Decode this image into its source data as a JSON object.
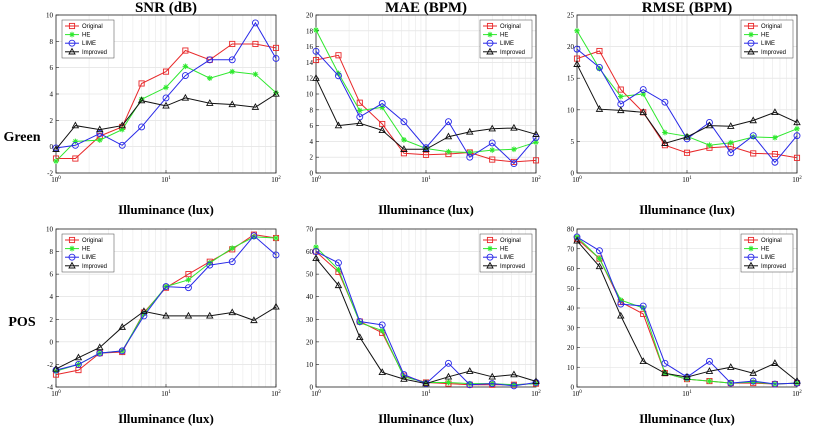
{
  "row_labels": [
    "Green",
    "POS"
  ],
  "chart_data": [
    {
      "type": "line",
      "row": 0,
      "col": 0,
      "title": "SNR (dB)",
      "xlabel": "Illuminance (lux)",
      "ylabel": "",
      "xscale": "log",
      "xlim": [
        1,
        100
      ],
      "ylim": [
        -2,
        10
      ],
      "yticks": [
        -2,
        0,
        2,
        4,
        6,
        8,
        10
      ],
      "grid": true,
      "legend": "top-left",
      "x": [
        1,
        1.5,
        2.5,
        4,
        6,
        10,
        15,
        25,
        40,
        65,
        100
      ],
      "series": [
        {
          "name": "Original",
          "color": "#e8282a",
          "marker": "square",
          "values": [
            -0.9,
            -0.9,
            0.8,
            1.5,
            4.8,
            5.7,
            7.3,
            6.6,
            7.8,
            7.8,
            7.5
          ]
        },
        {
          "name": "HE",
          "color": "#2ee82e",
          "marker": "star",
          "values": [
            -1.1,
            0.4,
            0.5,
            1.3,
            3.6,
            4.5,
            6.1,
            5.2,
            5.7,
            5.5,
            4.1
          ]
        },
        {
          "name": "LIME",
          "color": "#2828e8",
          "marker": "circle",
          "values": [
            -0.1,
            0.1,
            1.0,
            0.1,
            1.5,
            3.7,
            5.4,
            6.6,
            6.6,
            9.4,
            6.7
          ]
        },
        {
          "name": "Improved",
          "color": "#111111",
          "marker": "triangle",
          "values": [
            -0.2,
            1.6,
            1.3,
            1.6,
            3.5,
            3.1,
            3.7,
            3.3,
            3.2,
            3.0,
            4.0
          ]
        }
      ]
    },
    {
      "type": "line",
      "row": 0,
      "col": 1,
      "title": "MAE (BPM)",
      "xlabel": "Illuminance (lux)",
      "ylabel": "",
      "xscale": "log",
      "xlim": [
        1,
        100
      ],
      "ylim": [
        0,
        20
      ],
      "yticks": [
        0,
        2,
        4,
        6,
        8,
        10,
        12,
        14,
        16,
        18,
        20
      ],
      "grid": true,
      "legend": "top-right",
      "x": [
        1,
        1.6,
        2.5,
        4,
        6.3,
        10,
        16,
        25,
        40,
        63,
        100
      ],
      "series": [
        {
          "name": "Original",
          "color": "#e8282a",
          "marker": "square",
          "values": [
            14.3,
            14.9,
            8.9,
            6.2,
            2.5,
            2.3,
            2.4,
            2.6,
            1.7,
            1.4,
            1.6
          ]
        },
        {
          "name": "HE",
          "color": "#2ee82e",
          "marker": "star",
          "values": [
            18.1,
            12.6,
            7.9,
            8.3,
            4.2,
            3.1,
            2.7,
            2.6,
            2.9,
            3.0,
            3.9
          ]
        },
        {
          "name": "LIME",
          "color": "#2828e8",
          "marker": "circle",
          "values": [
            15.4,
            12.3,
            7.1,
            8.8,
            6.5,
            3.2,
            6.5,
            2.0,
            3.8,
            1.2,
            4.5
          ]
        },
        {
          "name": "Improved",
          "color": "#111111",
          "marker": "triangle",
          "values": [
            12.0,
            6.0,
            6.3,
            5.4,
            3.0,
            3.0,
            4.6,
            5.2,
            5.6,
            5.7,
            4.9
          ]
        }
      ]
    },
    {
      "type": "line",
      "row": 0,
      "col": 2,
      "title": "RMSE (BPM)",
      "xlabel": "Illuminance (lux)",
      "ylabel": "",
      "xscale": "log",
      "xlim": [
        1,
        100
      ],
      "ylim": [
        0,
        25
      ],
      "yticks": [
        0,
        5,
        10,
        15,
        20,
        25
      ],
      "grid": true,
      "legend": "top-right",
      "x": [
        1,
        1.6,
        2.5,
        4,
        6.3,
        10,
        16,
        25,
        40,
        63,
        100
      ],
      "series": [
        {
          "name": "Original",
          "color": "#e8282a",
          "marker": "square",
          "values": [
            18.1,
            19.3,
            13.2,
            9.6,
            4.4,
            3.2,
            4.0,
            4.2,
            3.1,
            3.0,
            2.4
          ]
        },
        {
          "name": "HE",
          "color": "#2ee82e",
          "marker": "star",
          "values": [
            22.5,
            16.5,
            12.1,
            12.5,
            6.4,
            5.8,
            4.4,
            4.8,
            5.7,
            5.6,
            7.0
          ]
        },
        {
          "name": "LIME",
          "color": "#2828e8",
          "marker": "circle",
          "values": [
            19.6,
            16.7,
            10.9,
            13.2,
            11.2,
            5.4,
            8.0,
            3.2,
            5.9,
            1.7,
            5.9
          ]
        },
        {
          "name": "Improved",
          "color": "#111111",
          "marker": "triangle",
          "values": [
            17.2,
            10.1,
            9.9,
            9.6,
            4.7,
            5.7,
            7.5,
            7.4,
            8.3,
            9.6,
            8.0
          ]
        }
      ]
    },
    {
      "type": "line",
      "row": 1,
      "col": 0,
      "title": "",
      "xlabel": "Illuminance (lux)",
      "ylabel": "",
      "xscale": "log",
      "xlim": [
        1,
        100
      ],
      "ylim": [
        -4,
        10
      ],
      "yticks": [
        -4,
        -2,
        0,
        2,
        4,
        6,
        8,
        10
      ],
      "grid": true,
      "legend": "top-left",
      "x": [
        1,
        1.6,
        2.5,
        4,
        6.3,
        10,
        16,
        25,
        40,
        63,
        100
      ],
      "series": [
        {
          "name": "Original",
          "color": "#e8282a",
          "marker": "square",
          "values": [
            -2.9,
            -2.5,
            -1.0,
            -0.9,
            2.6,
            4.8,
            6.0,
            7.1,
            8.2,
            9.5,
            9.2
          ]
        },
        {
          "name": "HE",
          "color": "#2ee82e",
          "marker": "star",
          "values": [
            -2.6,
            -2.0,
            -1.0,
            -0.8,
            2.5,
            4.9,
            5.5,
            7.0,
            8.3,
            9.3,
            9.2
          ]
        },
        {
          "name": "LIME",
          "color": "#2828e8",
          "marker": "circle",
          "values": [
            -2.5,
            -2.0,
            -1.0,
            -0.8,
            2.3,
            4.9,
            4.8,
            6.8,
            7.1,
            9.4,
            7.7
          ]
        },
        {
          "name": "Improved",
          "color": "#111111",
          "marker": "triangle",
          "values": [
            -2.4,
            -1.4,
            -0.5,
            1.3,
            2.7,
            2.3,
            2.3,
            2.3,
            2.6,
            1.9,
            3.1
          ]
        }
      ]
    },
    {
      "type": "line",
      "row": 1,
      "col": 1,
      "title": "",
      "xlabel": "Illuminance (lux)",
      "ylabel": "",
      "xscale": "log",
      "xlim": [
        1,
        100
      ],
      "ylim": [
        0,
        70
      ],
      "yticks": [
        0,
        10,
        20,
        30,
        40,
        50,
        60,
        70
      ],
      "grid": true,
      "legend": "top-right",
      "x": [
        1,
        1.6,
        2.5,
        4,
        6.3,
        10,
        16,
        25,
        40,
        63,
        100
      ],
      "series": [
        {
          "name": "Original",
          "color": "#e8282a",
          "marker": "square",
          "values": [
            60.0,
            51.0,
            29.0,
            24.0,
            5.0,
            2.0,
            1.5,
            1.0,
            1.0,
            1.0,
            1.5
          ]
        },
        {
          "name": "HE",
          "color": "#2ee82e",
          "marker": "star",
          "values": [
            62.0,
            52.0,
            28.5,
            25.0,
            4.5,
            2.0,
            2.0,
            1.5,
            1.5,
            1.0,
            1.5
          ]
        },
        {
          "name": "LIME",
          "color": "#2828e8",
          "marker": "circle",
          "values": [
            60.0,
            55.0,
            29.0,
            27.5,
            5.5,
            1.5,
            10.5,
            1.0,
            1.5,
            0.5,
            2.0
          ]
        },
        {
          "name": "Improved",
          "color": "#111111",
          "marker": "triangle",
          "values": [
            57.0,
            45.0,
            22.0,
            6.5,
            3.5,
            1.5,
            4.5,
            7.0,
            4.5,
            5.5,
            2.5
          ]
        }
      ]
    },
    {
      "type": "line",
      "row": 1,
      "col": 2,
      "title": "",
      "xlabel": "Illuminance (lux)",
      "ylabel": "",
      "xscale": "log",
      "xlim": [
        1,
        100
      ],
      "ylim": [
        0,
        80
      ],
      "yticks": [
        0,
        10,
        20,
        30,
        40,
        50,
        60,
        70,
        80
      ],
      "grid": true,
      "legend": "top-right",
      "x": [
        1,
        1.6,
        2.5,
        4,
        6.3,
        10,
        16,
        25,
        40,
        63,
        100
      ],
      "series": [
        {
          "name": "Original",
          "color": "#e8282a",
          "marker": "square",
          "values": [
            75.0,
            65.0,
            43.0,
            37.0,
            7.0,
            4.0,
            3.0,
            2.0,
            2.0,
            1.5,
            2.0
          ]
        },
        {
          "name": "HE",
          "color": "#2ee82e",
          "marker": "star",
          "values": [
            76.0,
            65.0,
            44.0,
            40.0,
            7.0,
            4.0,
            3.0,
            2.0,
            2.5,
            1.5,
            2.0
          ]
        },
        {
          "name": "LIME",
          "color": "#2828e8",
          "marker": "circle",
          "values": [
            76.0,
            69.0,
            42.0,
            41.0,
            12.0,
            5.0,
            13.0,
            2.0,
            3.0,
            1.5,
            2.0
          ]
        },
        {
          "name": "Improved",
          "color": "#111111",
          "marker": "triangle",
          "values": [
            74.0,
            61.0,
            36.0,
            13.0,
            7.0,
            5.0,
            8.0,
            10.0,
            7.0,
            12.0,
            3.0
          ]
        }
      ]
    }
  ]
}
